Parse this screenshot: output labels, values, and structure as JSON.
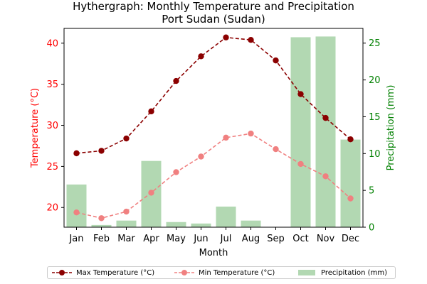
{
  "chart_data": {
    "type": "line+bar",
    "title": "Hythergraph: Monthly Temperature and Precipitation",
    "subtitle": "Port Sudan (Sudan)",
    "xlabel": "Month",
    "ylabel_left": "Temperature (°C)",
    "ylabel_right": "Precipitation (mm)",
    "categories": [
      "Jan",
      "Feb",
      "Mar",
      "Apr",
      "May",
      "Jun",
      "Jul",
      "Aug",
      "Sep",
      "Oct",
      "Nov",
      "Dec"
    ],
    "ylim_left": [
      17.6,
      41.8
    ],
    "ylim_right": [
      0,
      27
    ],
    "yticks_left": [
      20,
      25,
      30,
      35,
      40
    ],
    "yticks_right": [
      0,
      5,
      10,
      15,
      20,
      25
    ],
    "series": [
      {
        "name": "Max Temperature (°C)",
        "axis": "left",
        "kind": "line",
        "color": "#8b0000",
        "values": [
          26.6,
          26.9,
          28.4,
          31.7,
          35.4,
          38.4,
          40.7,
          40.4,
          37.9,
          33.8,
          30.9,
          28.3
        ]
      },
      {
        "name": "Min Temperature (°C)",
        "axis": "left",
        "kind": "line",
        "color": "#f08080",
        "values": [
          19.4,
          18.7,
          19.5,
          21.8,
          24.3,
          26.2,
          28.5,
          29.0,
          27.1,
          25.3,
          23.8,
          21.1
        ]
      },
      {
        "name": "Precipitation (mm)",
        "axis": "right",
        "kind": "bar",
        "color": "#b2d8b2",
        "values": [
          5.8,
          0.3,
          0.9,
          9.0,
          0.7,
          0.5,
          2.8,
          0.9,
          0.0,
          25.8,
          25.9,
          11.9
        ]
      }
    ],
    "legend_position": "bottom-center",
    "grid": false,
    "colors": {
      "left_axis": "#ff0000",
      "right_axis": "#008000"
    }
  }
}
